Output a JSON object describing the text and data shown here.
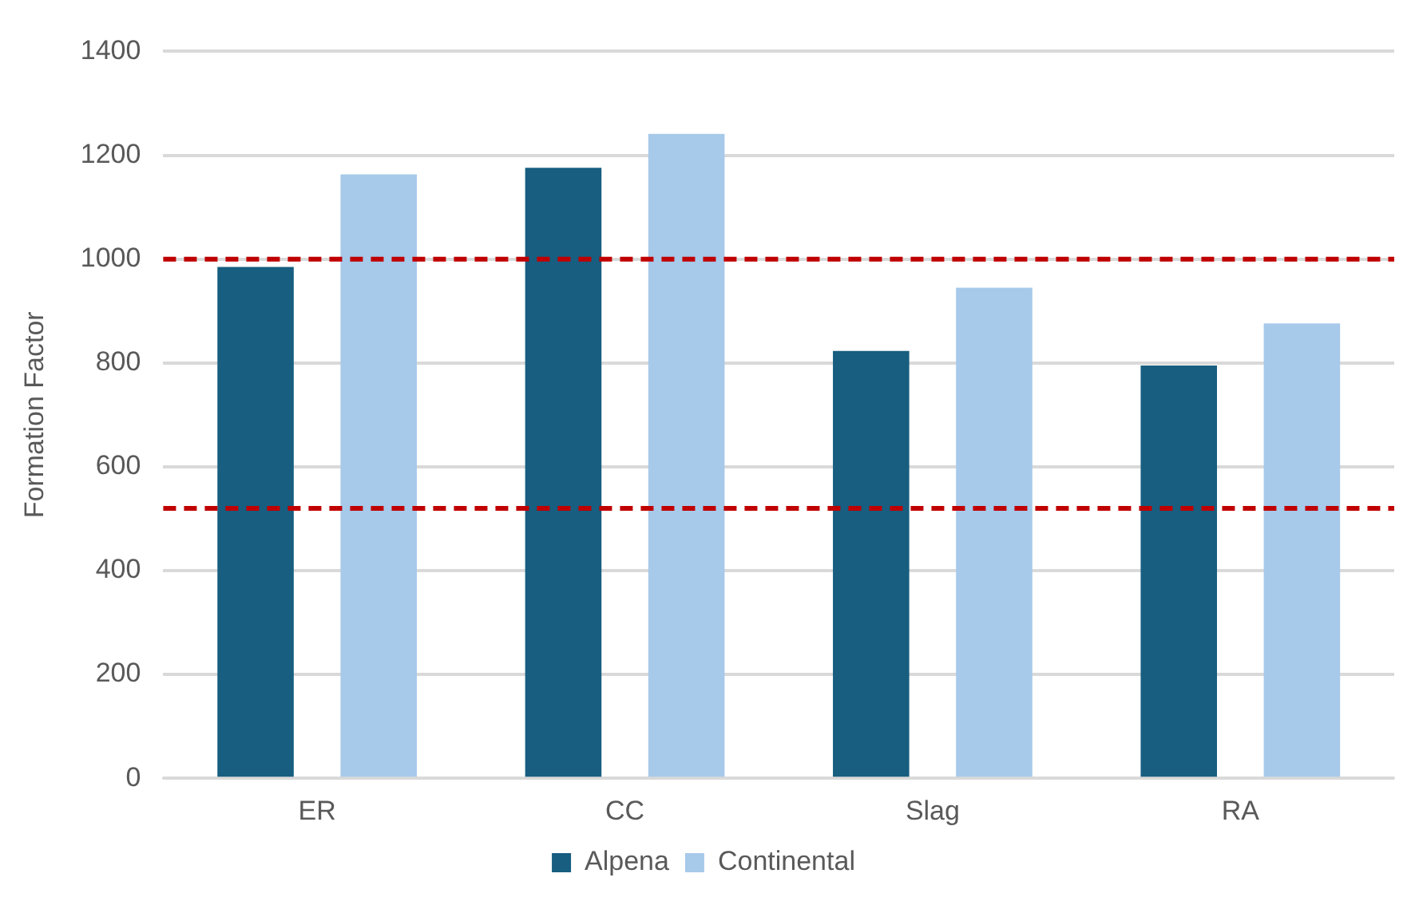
{
  "chart_data": {
    "type": "bar",
    "ylabel": "Formation Factor",
    "categories": [
      "ER",
      "CC",
      "Slag",
      "RA"
    ],
    "series": [
      {
        "name": "Alpena",
        "color": "#175e80",
        "values": [
          985,
          1176,
          823,
          795
        ]
      },
      {
        "name": "Continental",
        "color": "#a7c9ea",
        "values": [
          1163,
          1241,
          945,
          876
        ]
      }
    ],
    "ylim": [
      0,
      1400
    ],
    "yticks": [
      0,
      200,
      400,
      600,
      800,
      1000,
      1200,
      1400
    ],
    "grid": "y",
    "legend": "bottom",
    "ref_lines": [
      {
        "axis": "y",
        "value": 1000,
        "color": "#c00000",
        "line_style": "dashed"
      },
      {
        "axis": "y",
        "value": 520,
        "color": "#c00000",
        "line_style": "dashed"
      }
    ]
  }
}
